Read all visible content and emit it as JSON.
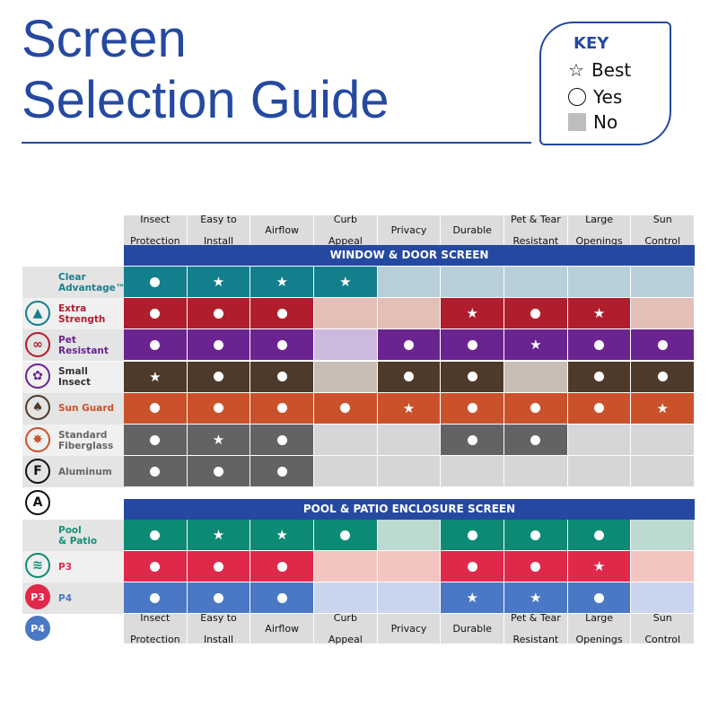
{
  "title": [
    "Screen",
    "Selection Guide"
  ],
  "key": {
    "title": "KEY",
    "best": "Best",
    "yes": "Yes",
    "no": "No"
  },
  "columns": [
    [
      "Insect",
      "Protection"
    ],
    [
      "Easy to",
      "Install"
    ],
    [
      "Airflow",
      ""
    ],
    [
      "Curb",
      "Appeal"
    ],
    [
      "Privacy",
      ""
    ],
    [
      "Durable",
      ""
    ],
    [
      "Pet & Tear",
      "Resistant"
    ],
    [
      "Large",
      "Openings"
    ],
    [
      "Sun",
      "Control"
    ]
  ],
  "sections": [
    {
      "title": "WINDOW & DOOR SCREEN",
      "rows": [
        {
          "label": [
            "Clear",
            "Advantage™"
          ],
          "label_color": "#1a7f8c",
          "color": "#137e8c",
          "no_color": "#b8ced9",
          "values": [
            "yes",
            "best",
            "best",
            "best",
            "no",
            "no",
            "no",
            "no",
            "no"
          ]
        },
        {
          "label": [
            "Extra",
            "Strength"
          ],
          "label_color": "#b01e2e",
          "color": "#b01e2e",
          "no_color": "#e4bfb8",
          "values": [
            "yes",
            "yes",
            "yes",
            "no",
            "no",
            "best",
            "yes",
            "best",
            "no"
          ]
        },
        {
          "label": [
            "Pet",
            "Resistant"
          ],
          "label_color": "#6a2490",
          "color": "#6a2490",
          "no_color": "#cdb9dd",
          "values": [
            "yes",
            "yes",
            "yes",
            "no",
            "yes",
            "yes",
            "best",
            "yes",
            "yes"
          ]
        },
        {
          "label": [
            "Small",
            "Insect"
          ],
          "label_color": "#333333",
          "color": "#4e3a2b",
          "no_color": "#c8beb6",
          "values": [
            "best",
            "yes",
            "yes",
            "no",
            "yes",
            "yes",
            "no",
            "yes",
            "yes"
          ]
        },
        {
          "label": [
            "Sun Guard",
            ""
          ],
          "label_color": "#c9522a",
          "color": "#c9522a",
          "no_color": "#e8c0b0",
          "values": [
            "yes",
            "yes",
            "yes",
            "yes",
            "best",
            "yes",
            "yes",
            "yes",
            "best"
          ]
        },
        {
          "label": [
            "Standard",
            "Fiberglass"
          ],
          "label_color": "#666666",
          "color": "#636365",
          "no_color": "#d6d6d8",
          "values": [
            "yes",
            "best",
            "yes",
            "no",
            "no",
            "yes",
            "yes",
            "no",
            "no"
          ]
        },
        {
          "label": [
            "Aluminum",
            ""
          ],
          "label_color": "#666666",
          "color": "#636365",
          "no_color": "#d6d6d8",
          "values": [
            "yes",
            "yes",
            "yes",
            "no",
            "no",
            "no",
            "no",
            "no",
            "no"
          ]
        }
      ]
    },
    {
      "title": "POOL & PATIO ENCLOSURE SCREEN",
      "rows": [
        {
          "label": [
            "Pool",
            "& Patio"
          ],
          "label_color": "#14917a",
          "color": "#0d8a73",
          "no_color": "#bcd9d2",
          "values": [
            "yes",
            "best",
            "best",
            "yes",
            "no",
            "yes",
            "yes",
            "yes",
            "no"
          ]
        },
        {
          "label": [
            "P3",
            ""
          ],
          "label_color": "#e0284a",
          "color": "#e0284a",
          "no_color": "#f4c4c0",
          "values": [
            "yes",
            "yes",
            "yes",
            "no",
            "no",
            "yes",
            "yes",
            "best",
            "no"
          ]
        },
        {
          "label": [
            "P4",
            ""
          ],
          "label_color": "#4a78c4",
          "color": "#4a78c4",
          "no_color": "#c9d5ee",
          "values": [
            "yes",
            "yes",
            "yes",
            "no",
            "no",
            "best",
            "best",
            "yes",
            "no"
          ]
        }
      ]
    }
  ],
  "icons": [
    {
      "name": "mountain-icon",
      "glyph": "▲",
      "color": "#137e8c"
    },
    {
      "name": "chain-icon",
      "glyph": "∞",
      "color": "#b01e2e"
    },
    {
      "name": "paw-icon",
      "glyph": "✿",
      "color": "#6a2490"
    },
    {
      "name": "sun-guard-icon",
      "glyph": "♠",
      "color": "#4e3a2b"
    },
    {
      "name": "burst-icon",
      "glyph": "✸",
      "color": "#c9522a"
    },
    {
      "name": "fiberglass-f-icon",
      "glyph": "F",
      "color": "#111111"
    },
    {
      "name": "aluminum-a-icon",
      "glyph": "A",
      "color": "#111111"
    },
    {
      "name": "waves-icon",
      "glyph": "≋",
      "color": "#0d8a73"
    },
    {
      "name": "p3-badge-icon",
      "glyph": "P3",
      "color": "#e0284a"
    },
    {
      "name": "p4-badge-icon",
      "glyph": "P4",
      "color": "#4a78c4"
    }
  ]
}
